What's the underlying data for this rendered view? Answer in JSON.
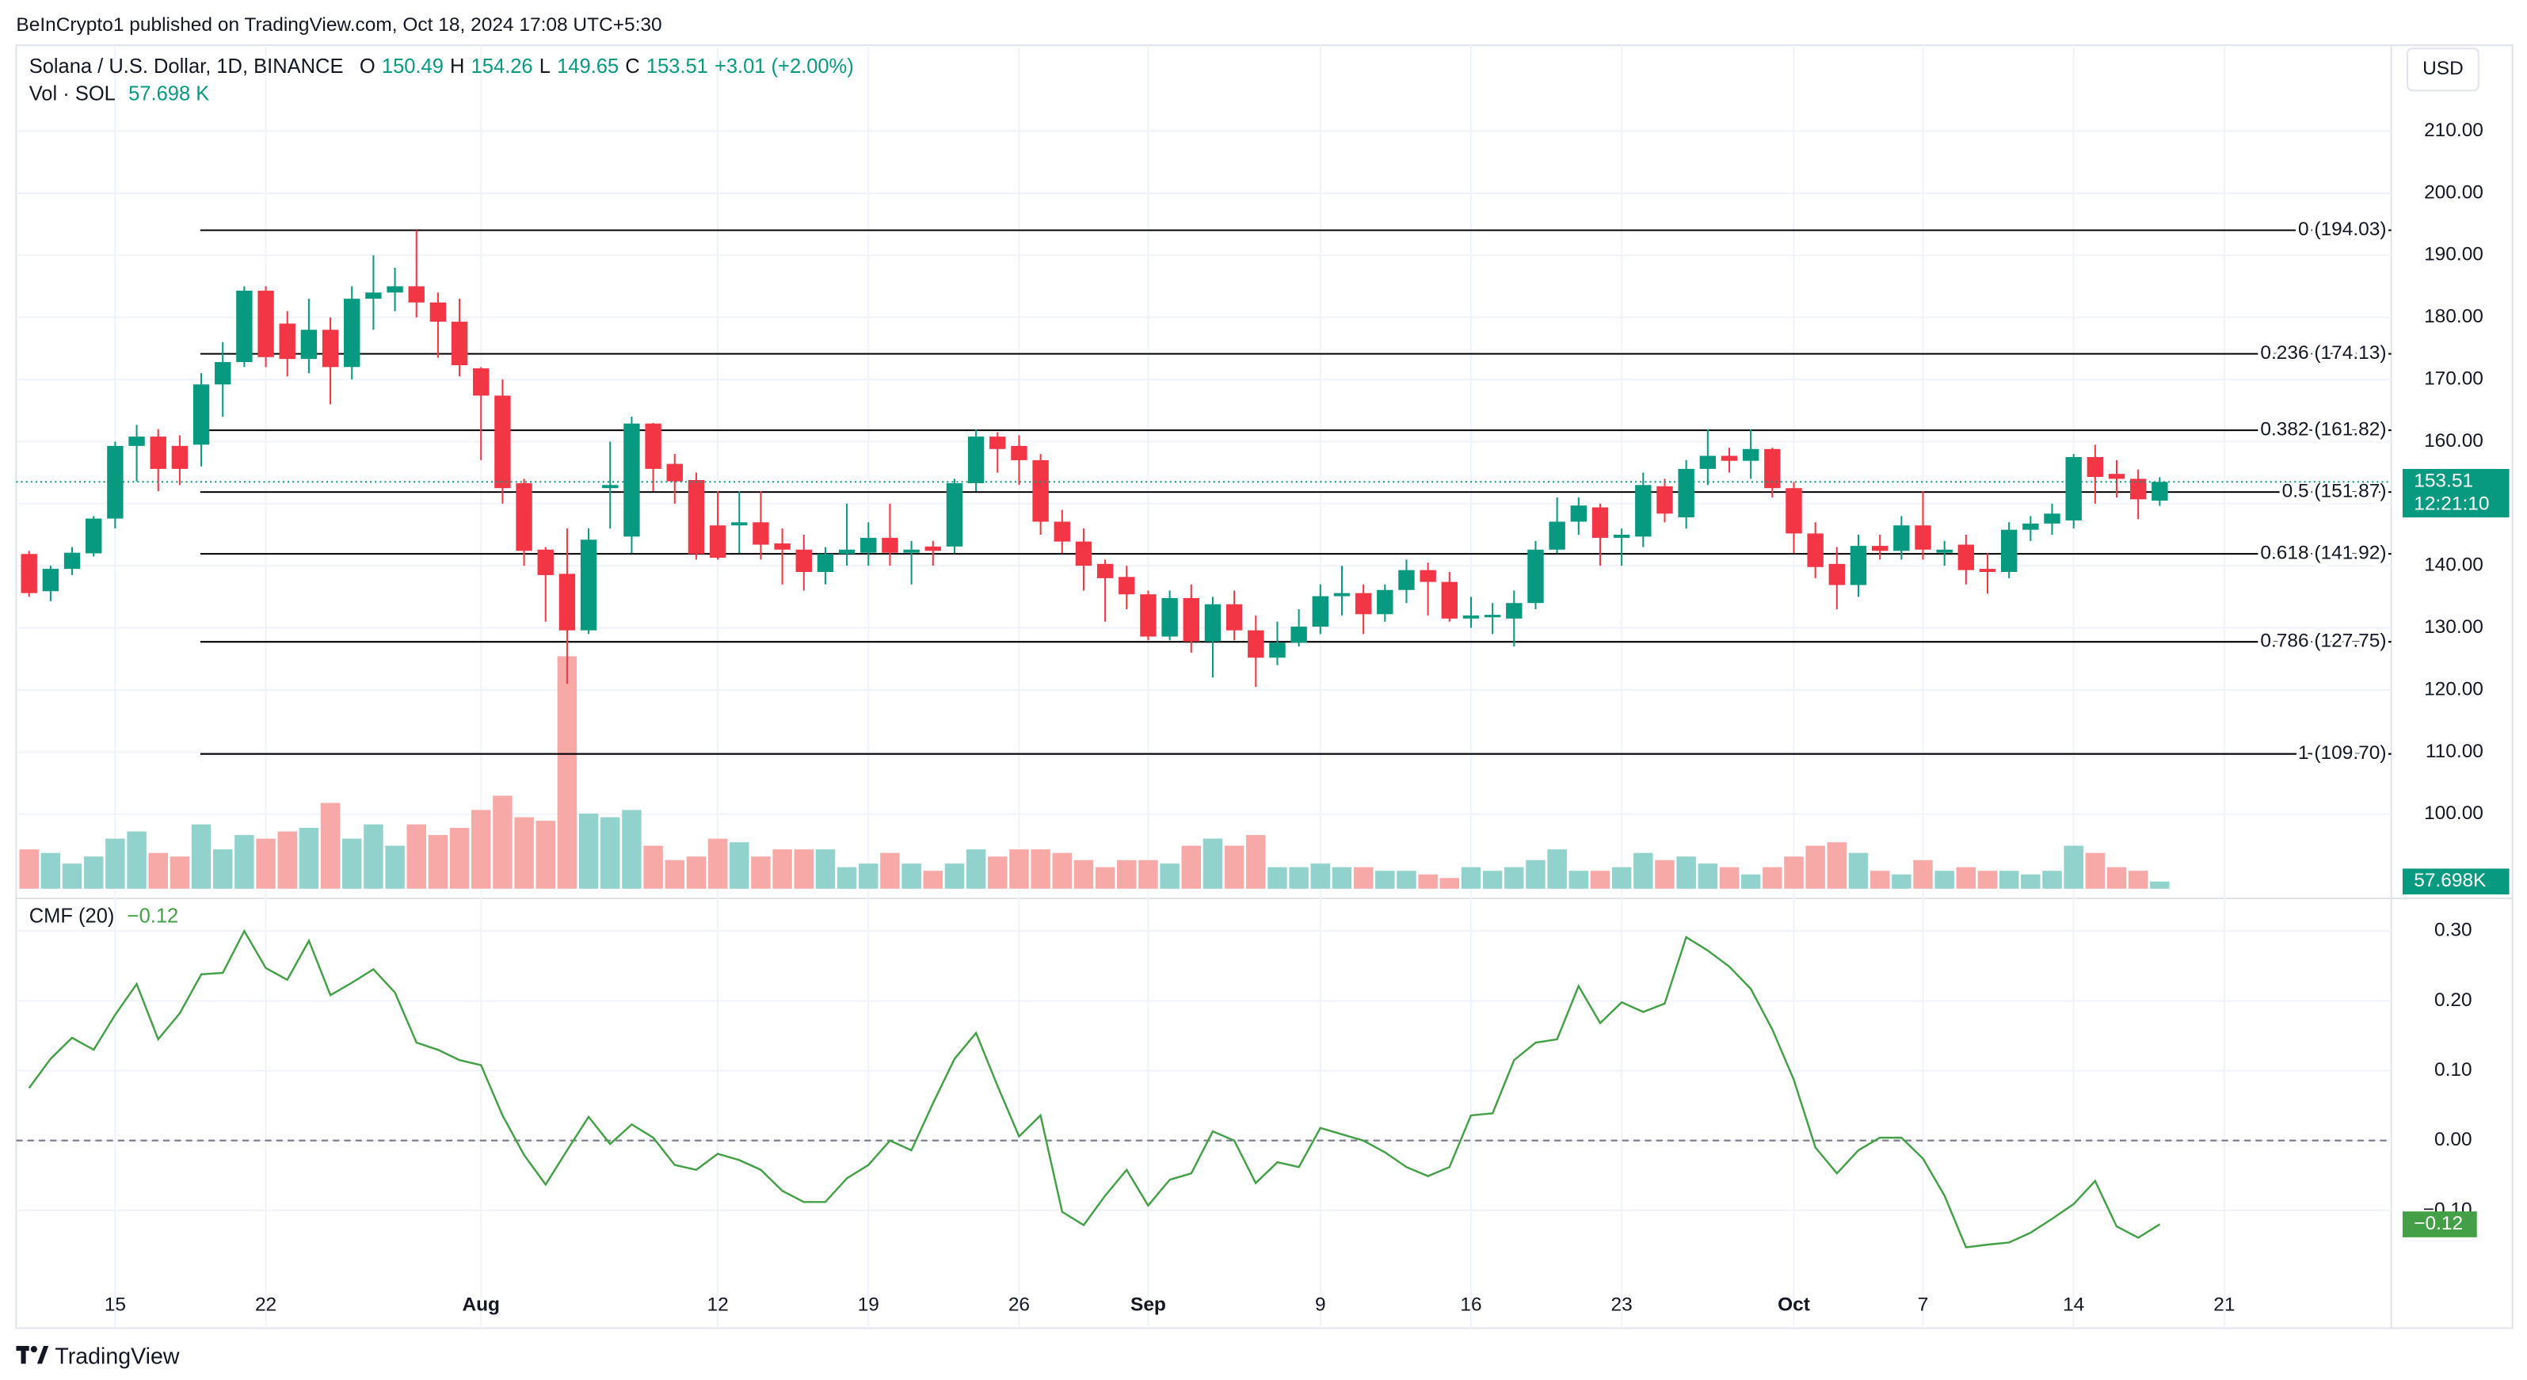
{
  "ui": {
    "publisher": "BeInCrypto1 published on TradingView.com, Oct 18, 2024 17:08 UTC+5:30",
    "brand": "TradingView",
    "currency": "USD",
    "symbol": "Solana / U.S. Dollar, 1D, BINANCE",
    "o": "O",
    "h": "H",
    "l": "L",
    "c": "C",
    "change": "+3.01 (+2.00%)",
    "vol_title": "Vol · SOL",
    "vol_value": "57.698 K"
  },
  "chart_data": [
    {
      "type": "candlestick",
      "categories": [
        null,
        null,
        null,
        null,
        "15",
        null,
        null,
        null,
        null,
        null,
        null,
        "22",
        null,
        null,
        null,
        null,
        null,
        null,
        null,
        null,
        null,
        "Aug",
        null,
        null,
        null,
        null,
        null,
        null,
        null,
        null,
        null,
        null,
        "12",
        null,
        null,
        null,
        null,
        null,
        null,
        "19",
        null,
        null,
        null,
        null,
        null,
        null,
        "26",
        null,
        null,
        null,
        null,
        null,
        "Sep",
        null,
        null,
        null,
        null,
        null,
        null,
        null,
        "9",
        null,
        null,
        null,
        null,
        null,
        null,
        "16",
        null,
        null,
        null,
        null,
        null,
        null,
        "23",
        null,
        null,
        null,
        null,
        null,
        null,
        null,
        "Oct",
        null,
        null,
        null,
        null,
        null,
        "7",
        null,
        null,
        null,
        null,
        null,
        null,
        "14",
        null,
        null,
        null,
        null,
        null,
        null,
        "21"
      ],
      "open": [
        141.9,
        135.9,
        139.5,
        142,
        147.6,
        159.3,
        160.8,
        159.3,
        159.5,
        169.2,
        172.8,
        184.3,
        179,
        173.3,
        178,
        172,
        183,
        184,
        185,
        182.4,
        179.3,
        171.8,
        167.4,
        153.3,
        142.6,
        138.7,
        129.6,
        152.5,
        144.7,
        162.9,
        156.4,
        153.8,
        146.5,
        146.5,
        147,
        143.6,
        142.6,
        139,
        141.9,
        142.1,
        144.5,
        142.1,
        143.1,
        143.1,
        153.3,
        160.8,
        159.3,
        157,
        147.1,
        143.9,
        140.3,
        138.2,
        135.4,
        128.6,
        134.8,
        127.8,
        133.8,
        129.6,
        125.2,
        127.6,
        130.2,
        135.1,
        135.6,
        132.2,
        136.1,
        139.3,
        137.4,
        131.5,
        131.7,
        131.5,
        134,
        142.6,
        147.1,
        149.4,
        144.5,
        144.7,
        152.8,
        147.8,
        155.6,
        157.7,
        156.9,
        158.8,
        152.5,
        145.2,
        140.3,
        136.9,
        143.2,
        142.4,
        146.5,
        142.1,
        143.4,
        139.5,
        139,
        145.8,
        146.8,
        147.3,
        157.5,
        154.8,
        154,
        150.49,
        null,
        null,
        null
      ],
      "high": [
        142.4,
        140,
        143,
        148,
        160,
        162.7,
        162,
        161,
        171,
        176,
        185,
        185,
        181,
        183,
        180,
        185,
        190,
        188,
        194.03,
        184,
        183,
        172,
        170,
        154,
        143,
        146,
        146,
        160,
        164,
        163,
        158,
        155,
        152,
        152,
        152,
        146,
        145,
        143,
        150,
        147,
        150,
        144,
        144,
        154,
        162,
        161.5,
        161,
        158,
        149,
        146,
        141,
        140,
        136,
        136,
        137,
        135,
        136,
        132,
        131,
        133,
        137,
        140,
        137,
        137,
        141,
        140.5,
        139,
        135,
        134,
        136,
        144,
        151,
        151,
        150,
        146,
        155,
        154,
        157,
        162,
        159,
        162,
        159,
        153.5,
        147,
        143,
        145,
        145,
        148,
        152,
        144,
        145,
        142,
        147,
        148,
        150,
        158,
        159.5,
        157,
        155.5,
        154.26,
        null,
        null,
        null
      ],
      "low": [
        135,
        134.3,
        138.5,
        141.5,
        146,
        153.6,
        152,
        153,
        156,
        164,
        172,
        172,
        170.5,
        171,
        166,
        170,
        178,
        181,
        180,
        173.5,
        170.5,
        157,
        150,
        140,
        131,
        121,
        129,
        146,
        142,
        152,
        150,
        141,
        141,
        142,
        141,
        137,
        136,
        137,
        140,
        140,
        140,
        137,
        140,
        142,
        152,
        155,
        153,
        145,
        142,
        136,
        131,
        133,
        128,
        128,
        126,
        122,
        128,
        120.5,
        124,
        127,
        129,
        132,
        129,
        131,
        134,
        132,
        131,
        130,
        129,
        127,
        133,
        142,
        145,
        140,
        140,
        143,
        147,
        146,
        153,
        155,
        154,
        151,
        142,
        138,
        133,
        135,
        141,
        141,
        141,
        140,
        137,
        135.5,
        138,
        144,
        145,
        146,
        150,
        151,
        147.5,
        149.65,
        null,
        null,
        null
      ],
      "close": [
        135.6,
        139.5,
        142.1,
        147.6,
        159.3,
        160.8,
        155.6,
        155.6,
        169.2,
        172.8,
        184.3,
        173.6,
        173.3,
        178,
        172,
        183,
        184,
        185,
        182.4,
        179.3,
        172.3,
        167.4,
        152.5,
        142.4,
        138.5,
        129.6,
        144.2,
        153,
        162.9,
        155.6,
        153.6,
        141.9,
        141.3,
        147,
        143.4,
        142.6,
        139,
        141.9,
        142.6,
        144.5,
        142.1,
        142.6,
        142.4,
        153.3,
        160.8,
        158.8,
        157,
        147.1,
        143.9,
        140,
        138,
        135.4,
        128.6,
        134.8,
        127.8,
        133.8,
        129.6,
        125.2,
        127.6,
        130.2,
        135.1,
        135.6,
        132.2,
        136.1,
        139.3,
        137.4,
        131.5,
        132,
        132.1,
        134,
        142.6,
        147.1,
        149.7,
        144.5,
        145,
        153,
        148.4,
        155.6,
        157.7,
        156.9,
        158.8,
        152.5,
        145.2,
        139.8,
        136.9,
        143.2,
        142.4,
        146.5,
        142.6,
        142.6,
        139.3,
        139,
        145.8,
        146.8,
        148.4,
        157.5,
        154.3,
        154,
        150.7,
        153.51,
        null,
        null,
        null
      ],
      "volume": [
        317,
        288,
        202,
        259,
        403,
        461,
        288,
        259,
        518,
        317,
        432,
        403,
        461,
        490,
        691,
        403,
        518,
        346,
        518,
        432,
        490,
        634,
        749,
        576,
        547,
        1872,
        605,
        576,
        634,
        346,
        230,
        259,
        403,
        374,
        259,
        317,
        317,
        317,
        173,
        202,
        288,
        202,
        144,
        202,
        317,
        259,
        317,
        317,
        288,
        230,
        173,
        230,
        230,
        202,
        346,
        403,
        346,
        432,
        173,
        173,
        202,
        173,
        173,
        144,
        144,
        115,
        86,
        173,
        144,
        173,
        230,
        317,
        144,
        144,
        173,
        288,
        230,
        259,
        202,
        173,
        115,
        173,
        259,
        346,
        374,
        288,
        144,
        115,
        230,
        144,
        173,
        144,
        144,
        115,
        144,
        346,
        288,
        173,
        144,
        57.698,
        null,
        null,
        null
      ],
      "volume_last_label": "57.698K",
      "volume_ylim": [
        0,
        6768
      ],
      "up_color": "#089981",
      "down_color": "#f23645",
      "volume_up_color": "#92d2cc",
      "volume_down_color": "#f7a9a7",
      "ylim": [
        88,
        223.3
      ],
      "yticks": [
        {
          "value": 100,
          "label": "100.00"
        },
        {
          "value": 110,
          "label": "110.00"
        },
        {
          "value": 120,
          "label": "120.00"
        },
        {
          "value": 130,
          "label": "130.00"
        },
        {
          "value": 140,
          "label": "140.00"
        },
        {
          "value": 150,
          "label": "150.00"
        },
        {
          "value": 160,
          "label": "160.00"
        },
        {
          "value": 170,
          "label": "170.00"
        },
        {
          "value": 180,
          "label": "180.00"
        },
        {
          "value": 190,
          "label": "190.00"
        },
        {
          "value": 200,
          "label": "200.00"
        },
        {
          "value": 210,
          "label": "210.00"
        }
      ],
      "fib_levels": [
        {
          "value": 194.03,
          "label": "0 (194.03)"
        },
        {
          "value": 174.13,
          "label": "0.236 (174.13)"
        },
        {
          "value": 161.82,
          "label": "0.382 (161.82)"
        },
        {
          "value": 151.87,
          "label": "0.5 (151.87)"
        },
        {
          "value": 141.92,
          "label": "0.618 (141.92)"
        },
        {
          "value": 127.75,
          "label": "0.786 (127.75)"
        },
        {
          "value": 109.7,
          "label": "1 (109.70)"
        }
      ],
      "countdown": "12:21:10",
      "grid": true
    },
    {
      "type": "line",
      "title": "CMF (20)",
      "value_label": "−0.12",
      "color": "#43a047",
      "values": [
        0.075,
        0.117,
        0.147,
        0.13,
        0.18,
        0.224,
        0.145,
        0.182,
        0.238,
        0.24,
        0.3,
        0.247,
        0.23,
        0.286,
        0.208,
        0.226,
        0.245,
        0.212,
        0.14,
        0.13,
        0.115,
        0.108,
        0.036,
        -0.021,
        -0.063,
        -0.014,
        0.034,
        -0.005,
        0.023,
        0.004,
        -0.035,
        -0.042,
        -0.019,
        -0.028,
        -0.042,
        -0.072,
        -0.088,
        -0.088,
        -0.054,
        -0.035,
        0,
        -0.014,
        0.053,
        0.117,
        0.154,
        0.078,
        0.006,
        0.036,
        -0.102,
        -0.121,
        -0.079,
        -0.042,
        -0.093,
        -0.056,
        -0.047,
        0.013,
        0,
        -0.061,
        -0.031,
        -0.038,
        0.018,
        0.009,
        0,
        -0.017,
        -0.038,
        -0.051,
        -0.038,
        0.036,
        0.039,
        0.115,
        0.14,
        0.145,
        0.221,
        0.168,
        0.198,
        0.184,
        0.196,
        0.291,
        0.272,
        0.249,
        0.217,
        0.159,
        0.087,
        -0.01,
        -0.047,
        -0.014,
        0.004,
        0.004,
        -0.026,
        -0.079,
        -0.153,
        -0.149,
        -0.146,
        -0.132,
        -0.112,
        -0.091,
        -0.058,
        -0.123,
        -0.139,
        -0.12,
        null,
        null,
        null
      ],
      "ylim": [
        -0.264,
        0.342
      ],
      "yticks": [
        {
          "value": -0.1,
          "label": "−0.10"
        },
        {
          "value": 0,
          "label": "0.00"
        },
        {
          "value": 0.1,
          "label": "0.10"
        },
        {
          "value": 0.2,
          "label": "0.20"
        },
        {
          "value": 0.3,
          "label": "0.30"
        }
      ],
      "zero_line": true,
      "grid": true
    }
  ]
}
